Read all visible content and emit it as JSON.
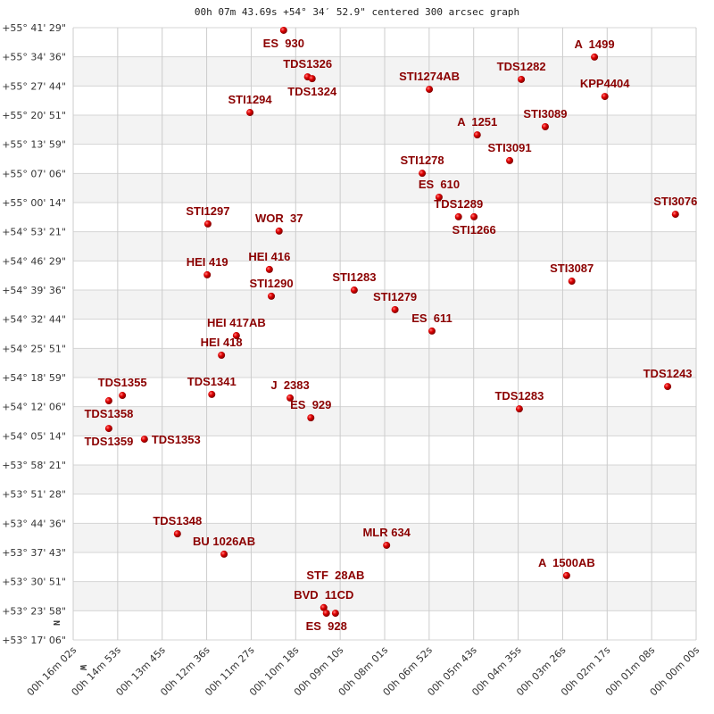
{
  "chart_data": {
    "type": "scatter",
    "title": "00h 07m 43.69s +54° 34′ 52.9\" centered 300 arcsec graph",
    "x_unit": "RA seconds (00h 00m 00s = 0)",
    "y_unit": "Dec degrees",
    "xlim": [
      962,
      0
    ],
    "ylim": [
      53.285,
      55.6914
    ],
    "grid": true,
    "x_tick_labels": [
      "00h 16m 02s",
      "00h 14m 53s",
      "00h 13m 45s",
      "00h 12m 36s",
      "00h 11m 27s",
      "00h 10m 18s",
      "00h 09m 10s",
      "00h 08m 01s",
      "00h 06m 52s",
      "00h 05m 43s",
      "00h 04m 35s",
      "00h 03m 26s",
      "00h 02m 17s",
      "00h 01m 08s",
      "00h 00m 00s"
    ],
    "y_tick_labels": [
      "+55° 41' 29\"",
      "+55° 34' 36\"",
      "+55° 27' 44\"",
      "+55° 20' 51\"",
      "+55° 13' 59\"",
      "+55° 07' 06\"",
      "+55° 00' 14\"",
      "+54° 53' 21\"",
      "+54° 46' 29\"",
      "+54° 39' 36\"",
      "+54° 32' 44\"",
      "+54° 25' 51\"",
      "+54° 18' 59\"",
      "+54° 12' 06\"",
      "+54° 05' 14\"",
      "+53° 58' 21\"",
      "+53° 51' 28\"",
      "+53° 44' 36\"",
      "+53° 37' 43\"",
      "+53° 30' 51\"",
      "+53° 23' 58\"",
      "+53° 17' 06\""
    ],
    "direction_labels": {
      "north": "N",
      "west": "W"
    },
    "marker_color": "#dd0000",
    "label_color": "#8b0000",
    "points": [
      {
        "name": "ES  930",
        "ra_s": 637,
        "dec": 55.681
      },
      {
        "name": "TDS1326",
        "ra_s": 600,
        "dec": 55.498
      },
      {
        "name": "TDS1324",
        "ra_s": 593,
        "dec": 55.491
      },
      {
        "name": "STI1274AB",
        "ra_s": 412,
        "dec": 55.449
      },
      {
        "name": "TDS1282",
        "ra_s": 270,
        "dec": 55.488
      },
      {
        "name": "A  1499",
        "ra_s": 157,
        "dec": 55.576
      },
      {
        "name": "KPP4404",
        "ra_s": 141,
        "dec": 55.421
      },
      {
        "name": "STI1294",
        "ra_s": 689,
        "dec": 55.358
      },
      {
        "name": "STI3089",
        "ra_s": 233,
        "dec": 55.302
      },
      {
        "name": "A  1251",
        "ra_s": 338,
        "dec": 55.27
      },
      {
        "name": "STI3091",
        "ra_s": 288,
        "dec": 55.169
      },
      {
        "name": "STI1278",
        "ra_s": 423,
        "dec": 55.119
      },
      {
        "name": "ES  610",
        "ra_s": 397,
        "dec": 55.025
      },
      {
        "name": "TDS1289",
        "ra_s": 367,
        "dec": 54.948
      },
      {
        "name": "STI1266",
        "ra_s": 343,
        "dec": 54.948
      },
      {
        "name": "STI3076",
        "ra_s": 32,
        "dec": 54.958
      },
      {
        "name": "STI1297",
        "ra_s": 754,
        "dec": 54.92
      },
      {
        "name": "WOR  37",
        "ra_s": 644,
        "dec": 54.892
      },
      {
        "name": "HEI 416",
        "ra_s": 659,
        "dec": 54.741
      },
      {
        "name": "HEI 419",
        "ra_s": 755,
        "dec": 54.72
      },
      {
        "name": "STI3087",
        "ra_s": 192,
        "dec": 54.695
      },
      {
        "name": "STI1290",
        "ra_s": 656,
        "dec": 54.636
      },
      {
        "name": "STI1283",
        "ra_s": 528,
        "dec": 54.66
      },
      {
        "name": "STI1279",
        "ra_s": 465,
        "dec": 54.583
      },
      {
        "name": "ES  611",
        "ra_s": 408,
        "dec": 54.499
      },
      {
        "name": "HEI 417AB",
        "ra_s": 710,
        "dec": 54.481
      },
      {
        "name": "HEI 418",
        "ra_s": 733,
        "dec": 54.404
      },
      {
        "name": "TDS1243",
        "ra_s": 44,
        "dec": 54.281
      },
      {
        "name": "TDS1341",
        "ra_s": 748,
        "dec": 54.25
      },
      {
        "name": "J  2383",
        "ra_s": 627,
        "dec": 54.236
      },
      {
        "name": "TDS1355",
        "ra_s": 886,
        "dec": 54.246
      },
      {
        "name": "TDS1358",
        "ra_s": 907,
        "dec": 54.225
      },
      {
        "name": "TDS1283",
        "ra_s": 273,
        "dec": 54.193
      },
      {
        "name": "ES  929",
        "ra_s": 595,
        "dec": 54.158
      },
      {
        "name": "TDS1359",
        "ra_s": 907,
        "dec": 54.116
      },
      {
        "name": "TDS1353",
        "ra_s": 852,
        "dec": 54.074
      },
      {
        "name": "TDS1348",
        "ra_s": 801,
        "dec": 53.702
      },
      {
        "name": "BU 1026AB",
        "ra_s": 729,
        "dec": 53.622
      },
      {
        "name": "MLR 634",
        "ra_s": 478,
        "dec": 53.657
      },
      {
        "name": "A  1500AB",
        "ra_s": 200,
        "dec": 53.538
      },
      {
        "name": "BVD  11CD",
        "ra_s": 575,
        "dec": 53.412
      },
      {
        "name": "ES  928",
        "ra_s": 571,
        "dec": 53.39
      },
      {
        "name": "STF  28AB",
        "ra_s": 557,
        "dec": 53.39
      }
    ]
  }
}
